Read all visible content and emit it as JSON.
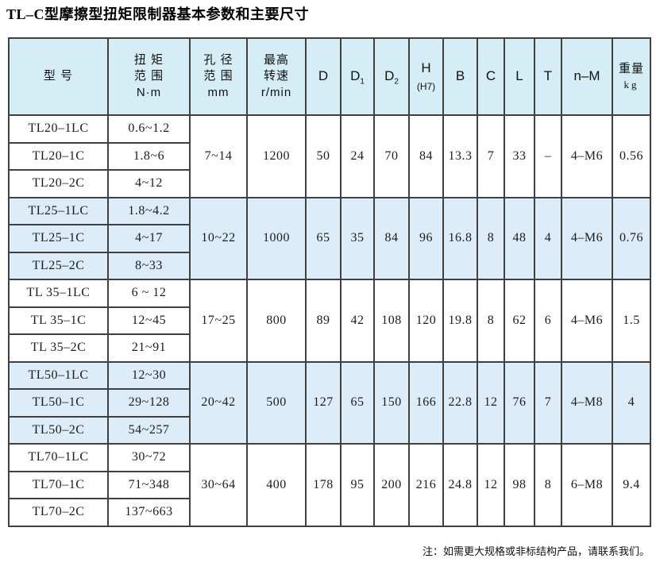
{
  "title": "TL–C型摩擦型扭矩限制器基本参数和主要尺寸",
  "note": "注：如需更大规格或非标结构产品，请联系我们。",
  "colors": {
    "header_bg": "#d5edf4",
    "alt_row_bg": "#dcecf9",
    "border": "#404040"
  },
  "table": {
    "headers": {
      "model": "型 号",
      "torque": "扭 矩\n范 围\nN·m",
      "bore": "孔 径\n范 围\nmm",
      "speed": "最高\n转速\nr/min",
      "d": "D",
      "d1": {
        "label": "D",
        "sub": "1"
      },
      "d2": {
        "label": "D",
        "sub": "2"
      },
      "h": {
        "label": "H",
        "note": "(H7)"
      },
      "b": "B",
      "c": "C",
      "l": "L",
      "t": "T",
      "nm": "n–M",
      "weight": {
        "label": "重量",
        "unit": "kg"
      }
    },
    "groups": [
      {
        "highlight": false,
        "rows": [
          {
            "model": "TL20–1LC",
            "torque": "0.6~1.2"
          },
          {
            "model": "TL20–1C",
            "torque": "1.8~6"
          },
          {
            "model": "TL20–2C",
            "torque": "4~12"
          }
        ],
        "merged": {
          "bore": "7~14",
          "speed": "1200",
          "D": "50",
          "D1": "24",
          "D2": "70",
          "H": "84",
          "B": "13.3",
          "C": "7",
          "L": "33",
          "T": "–",
          "nM": "4–M6",
          "weight": "0.56"
        }
      },
      {
        "highlight": true,
        "rows": [
          {
            "model": "TL25–1LC",
            "torque": "1.8~4.2"
          },
          {
            "model": "TL25–1C",
            "torque": "4~17"
          },
          {
            "model": "TL25–2C",
            "torque": "8~33"
          }
        ],
        "merged": {
          "bore": "10~22",
          "speed": "1000",
          "D": "65",
          "D1": "35",
          "D2": "84",
          "H": "96",
          "B": "16.8",
          "C": "8",
          "L": "48",
          "T": "4",
          "nM": "4–M6",
          "weight": "0.76"
        }
      },
      {
        "highlight": false,
        "rows": [
          {
            "model": "TL 35–1LC",
            "torque": "6 ~ 12"
          },
          {
            "model": "TL 35–1C",
            "torque": "12~45"
          },
          {
            "model": "TL 35–2C",
            "torque": "21~91"
          }
        ],
        "merged": {
          "bore": "17~25",
          "speed": "800",
          "D": "89",
          "D1": "42",
          "D2": "108",
          "H": "120",
          "B": "19.8",
          "C": "8",
          "L": "62",
          "T": "6",
          "nM": "4–M6",
          "weight": "1.5"
        }
      },
      {
        "highlight": true,
        "rows": [
          {
            "model": "TL50–1LC",
            "torque": "12~30"
          },
          {
            "model": "TL50–1C",
            "torque": "29~128"
          },
          {
            "model": "TL50–2C",
            "torque": "54~257"
          }
        ],
        "merged": {
          "bore": "20~42",
          "speed": "500",
          "D": "127",
          "D1": "65",
          "D2": "150",
          "H": "166",
          "B": "22.8",
          "C": "12",
          "L": "76",
          "T": "7",
          "nM": "4–M8",
          "weight": "4"
        }
      },
      {
        "highlight": false,
        "rows": [
          {
            "model": "TL70–1LC",
            "torque": "30~72"
          },
          {
            "model": "TL70–1C",
            "torque": "71~348"
          },
          {
            "model": "TL70–2C",
            "torque": "137~663"
          }
        ],
        "merged": {
          "bore": "30~64",
          "speed": "400",
          "D": "178",
          "D1": "95",
          "D2": "200",
          "H": "216",
          "B": "24.8",
          "C": "12",
          "L": "98",
          "T": "8",
          "nM": "6–M8",
          "weight": "9.4"
        }
      }
    ]
  }
}
